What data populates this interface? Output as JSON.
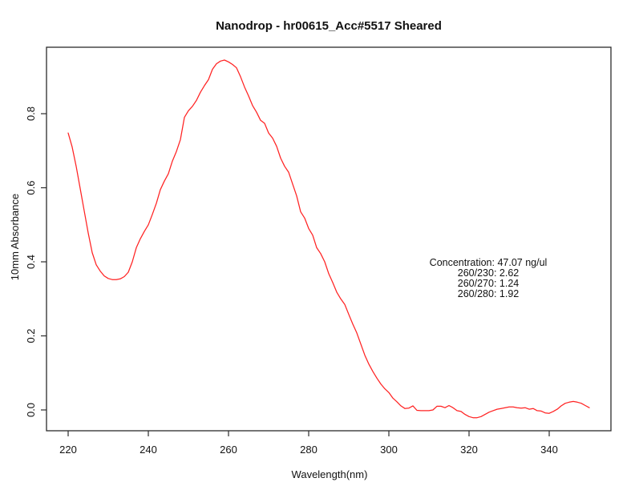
{
  "chart_data": {
    "type": "line",
    "title": "Nanodrop - hr00615_Acc#5517 Sheared",
    "xlabel": "Wavelength(nm)",
    "ylabel": "10mm Absorbance",
    "grid": false,
    "legend": "none",
    "xlim": [
      214.6,
      355.4
    ],
    "ylim": [
      -0.0562,
      0.9795
    ],
    "xticks": [
      220,
      240,
      260,
      280,
      300,
      320,
      340
    ],
    "yticks": [
      0,
      0.2,
      0.4,
      0.6,
      0.8
    ],
    "ytick_labels": [
      "0.0",
      "0.2",
      "0.4",
      "0.6",
      "0.8"
    ],
    "line_color": "#ff2222",
    "axis_color": "#2b2b2b",
    "annotation": {
      "lines": [
        "Concentration: 47.07 ng/ul",
        "260/230: 2.62",
        "260/270: 1.24",
        "260/280: 1.92"
      ]
    },
    "series": [
      {
        "name": "10mm absorbance spectrum",
        "x": [
          220,
          221,
          222,
          223,
          224,
          225,
          226,
          227,
          228,
          229,
          230,
          231,
          232,
          233,
          234,
          235,
          236,
          237,
          238,
          239,
          240,
          241,
          242,
          243,
          244,
          245,
          246,
          247,
          248,
          249,
          250,
          251,
          252,
          253,
          254,
          255,
          256,
          257,
          258,
          259,
          260,
          261,
          262,
          263,
          264,
          265,
          266,
          267,
          268,
          269,
          270,
          271,
          272,
          273,
          274,
          275,
          276,
          277,
          278,
          279,
          280,
          281,
          282,
          283,
          284,
          285,
          286,
          287,
          288,
          289,
          290,
          291,
          292,
          293,
          294,
          295,
          296,
          297,
          298,
          299,
          300,
          301,
          302,
          303,
          304,
          305,
          306,
          307,
          308,
          309,
          310,
          311,
          312,
          313,
          314,
          315,
          316,
          317,
          318,
          319,
          320,
          321,
          322,
          323,
          324,
          325,
          326,
          327,
          328,
          329,
          330,
          331,
          332,
          333,
          334,
          335,
          336,
          337,
          338,
          339,
          340,
          341,
          342,
          343,
          344,
          345,
          346,
          347,
          348,
          349,
          350
        ],
        "y": [
          0.748,
          0.71,
          0.658,
          0.598,
          0.538,
          0.478,
          0.425,
          0.392,
          0.375,
          0.362,
          0.355,
          0.352,
          0.352,
          0.354,
          0.36,
          0.372,
          0.4,
          0.438,
          0.462,
          0.482,
          0.5,
          0.528,
          0.558,
          0.595,
          0.618,
          0.638,
          0.672,
          0.698,
          0.73,
          0.79,
          0.808,
          0.82,
          0.836,
          0.858,
          0.876,
          0.892,
          0.92,
          0.935,
          0.942,
          0.945,
          0.94,
          0.933,
          0.924,
          0.9,
          0.872,
          0.848,
          0.822,
          0.804,
          0.782,
          0.774,
          0.748,
          0.734,
          0.712,
          0.68,
          0.658,
          0.642,
          0.61,
          0.578,
          0.535,
          0.518,
          0.49,
          0.472,
          0.438,
          0.422,
          0.4,
          0.368,
          0.344,
          0.318,
          0.3,
          0.285,
          0.258,
          0.232,
          0.208,
          0.178,
          0.148,
          0.124,
          0.104,
          0.086,
          0.07,
          0.057,
          0.047,
          0.032,
          0.022,
          0.011,
          0.004,
          0.005,
          0.011,
          -0.001,
          -0.002,
          -0.002,
          -0.002,
          0.0,
          0.01,
          0.01,
          0.006,
          0.012,
          0.006,
          -0.002,
          -0.004,
          -0.012,
          -0.018,
          -0.021,
          -0.021,
          -0.018,
          -0.012,
          -0.006,
          -0.002,
          0.002,
          0.004,
          0.006,
          0.008,
          0.008,
          0.006,
          0.005,
          0.006,
          0.002,
          0.004,
          -0.002,
          -0.003,
          -0.008,
          -0.009,
          -0.004,
          0.002,
          0.011,
          0.018,
          0.021,
          0.023,
          0.021,
          0.018,
          0.012,
          0.006
        ]
      }
    ]
  }
}
